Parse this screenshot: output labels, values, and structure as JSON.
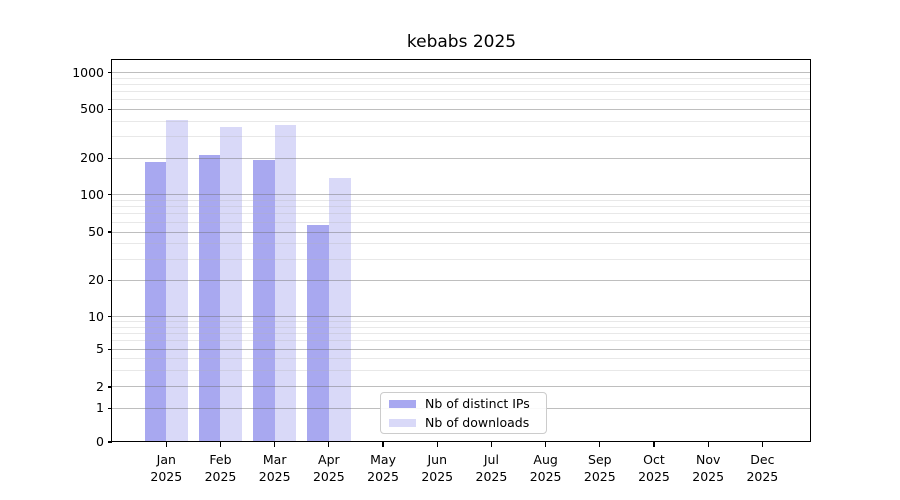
{
  "figure": {
    "title": "kebabs 2025"
  },
  "chart_data": {
    "type": "bar",
    "title": "kebabs 2025",
    "x_categories": [
      "Jan",
      "Feb",
      "Mar",
      "Apr",
      "May",
      "Jun",
      "Jul",
      "Aug",
      "Sep",
      "Oct",
      "Nov",
      "Dec"
    ],
    "x_year": "2025",
    "series": [
      {
        "name": "Nb of distinct IPs",
        "color": "#a8a8f0",
        "values": [
          185,
          214,
          193,
          57,
          0,
          0,
          0,
          0,
          0,
          0,
          0,
          0
        ]
      },
      {
        "name": "Nb of downloads",
        "color": "#d9d9f8",
        "values": [
          408,
          358,
          370,
          138,
          0,
          0,
          0,
          0,
          0,
          0,
          0,
          0
        ]
      }
    ],
    "xlabel": "",
    "ylabel": "",
    "yscale": "symlog",
    "ylim": [
      0,
      1270
    ],
    "y_ticks": [
      0,
      1,
      2,
      5,
      10,
      20,
      50,
      100,
      200,
      500,
      1000
    ],
    "y_minor_gridlines": [
      3,
      4,
      6,
      7,
      8,
      9,
      30,
      40,
      60,
      70,
      80,
      90,
      300,
      400,
      600,
      700,
      800,
      900
    ],
    "grid": true,
    "legend_position": "inside-bottom-center"
  }
}
